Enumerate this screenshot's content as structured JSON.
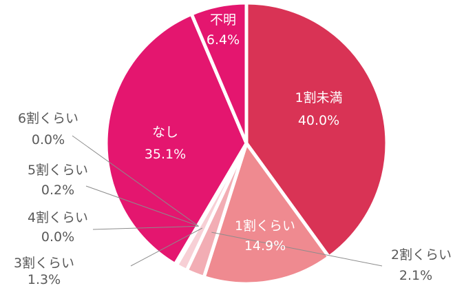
{
  "chart_data": {
    "type": "pie",
    "title": "",
    "start_angle_deg": 0,
    "direction": "clockwise",
    "slices": [
      {
        "label": "1割未満",
        "value": 40.0,
        "display": "40.0%",
        "color": "#d93355",
        "label_position": "inside"
      },
      {
        "label": "1割くらい",
        "value": 14.9,
        "display": "14.9%",
        "color": "#ef8a90",
        "label_position": "inside"
      },
      {
        "label": "2割くらい",
        "value": 2.1,
        "display": "2.1%",
        "color": "#f2adb4",
        "label_position": "outside-right"
      },
      {
        "label": "3割くらい",
        "value": 1.3,
        "display": "1.3%",
        "color": "#f7cfd5",
        "label_position": "outside-left"
      },
      {
        "label": "4割くらい",
        "value": 0.0,
        "display": "0.0%",
        "color": "#f9dbe3",
        "label_position": "outside-left"
      },
      {
        "label": "5割くらい",
        "value": 0.2,
        "display": "0.2%",
        "color": "#f5b9cb",
        "label_position": "outside-left"
      },
      {
        "label": "6割くらい",
        "value": 0.0,
        "display": "0.0%",
        "color": "#f0a0b8",
        "label_position": "outside-left"
      },
      {
        "label": "なし",
        "value": 35.1,
        "display": "35.1%",
        "color": "#e4166f",
        "label_position": "inside"
      },
      {
        "label": "不明",
        "value": 6.4,
        "display": "6.4%",
        "color": "#e4166f",
        "label_position": "inside"
      }
    ]
  }
}
